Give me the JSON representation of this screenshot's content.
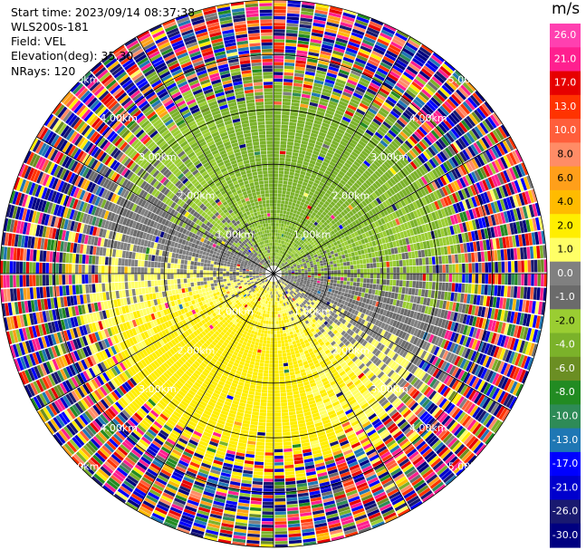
{
  "header": {
    "start_time": "Start time: 2023/09/14 08:37:38",
    "instrument": "WLS200s-181",
    "field": "Field: VEL",
    "elevation": "Elevation(deg): 35.30",
    "nrays": "NRays: 120"
  },
  "chart_data": {
    "type": "heatmap",
    "projection": "polar-ppi",
    "field": "VEL",
    "units": "m/s",
    "nrays": 120,
    "elevation_deg": 35.3,
    "max_range_km": 5.0,
    "range_rings_km": [
      1,
      2,
      3,
      4,
      5
    ],
    "ring_labels": [
      "1.00km",
      "2.00km",
      "3.00km",
      "4.00km",
      "5.00km"
    ],
    "colorbar": {
      "title": "m/s",
      "tick_labels": [
        "26.0",
        "21.0",
        "17.0",
        "13.0",
        "10.0",
        "8.0",
        "6.0",
        "4.0",
        "2.0",
        "1.0",
        "0.0",
        "-1.0",
        "-2.0",
        "-4.0",
        "-6.0",
        "-8.0",
        "-10.0",
        "-13.0",
        "-17.0",
        "-21.0",
        "-26.0",
        "-30.0"
      ],
      "colors": [
        "#ff40b0",
        "#ff1f8f",
        "#e60000",
        "#ff3300",
        "#ff5e3b",
        "#ff8c66",
        "#ff9f1a",
        "#ffbb00",
        "#ffee00",
        "#ffff66",
        "#808080",
        "#6b6b6b",
        "#9acd32",
        "#7bb22a",
        "#6b8e23",
        "#228b22",
        "#2e8b57",
        "#1f77b4",
        "#0000ff",
        "#0000cd",
        "#191970",
        "#000080"
      ]
    },
    "velocity_pattern": {
      "positive_azimuth_deg": 200,
      "negative_azimuth_deg": 20,
      "mean_speed_ms": 3.2,
      "noise_start_km": 3.9
    }
  }
}
